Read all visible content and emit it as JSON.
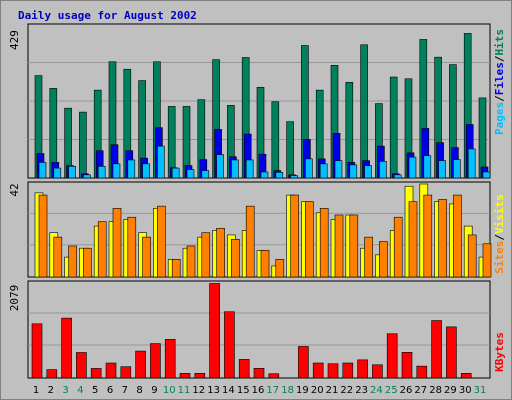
{
  "colors": {
    "hits": "#00805c",
    "files": "#0000e6",
    "pages": "#00c0ff",
    "visits": "#ffff00",
    "sites": "#ff8000",
    "kbytes": "#ff0000",
    "panel": "#c0c0c0",
    "title": "#0000c0",
    "weekday": "#000000",
    "weekend": "#00805c"
  },
  "chart_data": [
    {
      "type": "bar",
      "title": "Daily usage for August 2002",
      "ymax_label": "429",
      "ylim": [
        0,
        429
      ],
      "legend": [
        "Pages",
        "/",
        "Files",
        "/",
        "Hits"
      ],
      "categories": [
        "1",
        "2",
        "3",
        "4",
        "5",
        "6",
        "7",
        "8",
        "9",
        "10",
        "11",
        "12",
        "13",
        "14",
        "15",
        "16",
        "17",
        "18",
        "19",
        "20",
        "21",
        "22",
        "23",
        "24",
        "25",
        "26",
        "27",
        "28",
        "29",
        "30",
        "31"
      ],
      "weekend_days": [
        "3",
        "4",
        "10",
        "11",
        "17",
        "18",
        "24",
        "25",
        "31"
      ],
      "series": [
        {
          "name": "Hits",
          "values": [
            289,
            253,
            197,
            186,
            248,
            328,
            307,
            275,
            328,
            202,
            202,
            221,
            334,
            205,
            340,
            256,
            215,
            159,
            374,
            248,
            318,
            270,
            376,
            210,
            285,
            280,
            391,
            341,
            320,
            408,
            226
          ]
        },
        {
          "name": "Files",
          "values": [
            69,
            44,
            35,
            12,
            77,
            94,
            77,
            56,
            142,
            29,
            35,
            52,
            137,
            60,
            124,
            67,
            21,
            9,
            109,
            54,
            126,
            44,
            49,
            90,
            12,
            71,
            140,
            100,
            86,
            151,
            31
          ]
        },
        {
          "name": "Pages",
          "values": [
            44,
            28,
            33,
            9,
            33,
            40,
            51,
            40,
            90,
            28,
            24,
            21,
            66,
            51,
            51,
            17,
            16,
            7,
            54,
            40,
            49,
            37,
            35,
            47,
            9,
            59,
            63,
            49,
            52,
            82,
            17
          ]
        }
      ]
    },
    {
      "type": "bar",
      "ymax_label": "42",
      "ylim": [
        0,
        42
      ],
      "legend": [
        "Sites",
        "/",
        "Visits"
      ],
      "series": [
        {
          "name": "Visits",
          "values": [
            38,
            20,
            9,
            13,
            23,
            25,
            26,
            20,
            31,
            8,
            13,
            18,
            21,
            19,
            21,
            12,
            5,
            37,
            34,
            29,
            26,
            28,
            13,
            10,
            21,
            41,
            42,
            34,
            33,
            23,
            9
          ]
        },
        {
          "name": "Sites",
          "values": [
            37,
            18,
            14,
            13,
            25,
            31,
            27,
            18,
            32,
            8,
            14,
            20,
            22,
            17,
            32,
            12,
            8,
            37,
            34,
            31,
            28,
            28,
            18,
            16,
            27,
            34,
            37,
            35,
            37,
            19,
            15
          ]
        }
      ]
    },
    {
      "type": "bar",
      "ymax_label": "2079",
      "ylim": [
        0,
        2079
      ],
      "legend": [
        "KBytes"
      ],
      "series": [
        {
          "name": "KBytes",
          "values": [
            1186,
            183,
            1310,
            558,
            209,
            328,
            247,
            589,
            753,
            845,
            102,
            102,
            2068,
            1450,
            407,
            212,
            93,
            0,
            690,
            328,
            312,
            328,
            397,
            289,
            968,
            562,
            260,
            1257,
            1119,
            102,
            0
          ]
        }
      ]
    }
  ]
}
